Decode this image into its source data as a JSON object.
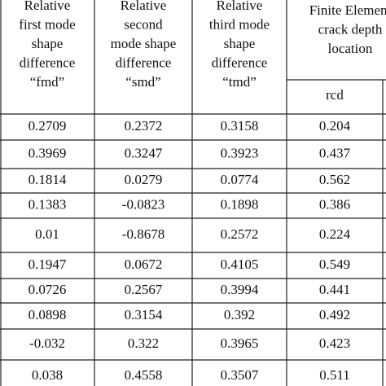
{
  "table": {
    "headers": [
      [
        "Relative",
        "first mode",
        "shape",
        "difference",
        "“fmd”"
      ],
      [
        "Relative",
        "second",
        "mode shape",
        "difference",
        "“smd”"
      ],
      [
        "Relative",
        "third mode",
        "shape",
        "difference",
        "“tmd”"
      ],
      [
        "Finite Element",
        "crack depth",
        "location"
      ]
    ],
    "subheader": "rcd",
    "rows": [
      [
        "0.2709",
        "0.2372",
        "0.3158",
        "0.204"
      ],
      [
        "0.3969",
        "0.3247",
        "0.3923",
        "0.437"
      ],
      [
        "0.1814",
        "0.0279",
        "0.0774",
        "0.562"
      ],
      [
        "0.1383",
        "-0.0823",
        "0.1898",
        "0.386"
      ],
      [
        "0.01",
        "-0.8678",
        "0.2572",
        "0.224"
      ],
      [
        "0.1947",
        "0.0672",
        "0.4105",
        "0.549"
      ],
      [
        "0.0726",
        "0.2567",
        "0.3994",
        "0.441"
      ],
      [
        "0.0898",
        "0.3154",
        "0.392",
        "0.492"
      ],
      [
        "-0.032",
        "0.322",
        "0.3965",
        "0.423"
      ],
      [
        "0.038",
        "0.4558",
        "0.3507",
        "0.511"
      ]
    ]
  }
}
